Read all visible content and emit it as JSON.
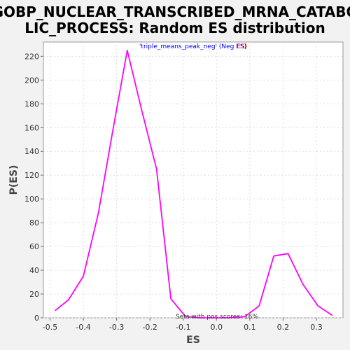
{
  "chart_data": {
    "type": "line",
    "title_lines": [
      "GOBP_NUCLEAR_TRANSCRIBED_MRNA_CATABO",
      "LIC_PROCESS: Random ES distribution"
    ],
    "xlabel": "ES",
    "ylabel": "P(ES)",
    "xlim": [
      -0.52,
      0.38
    ],
    "ylim": [
      0,
      232
    ],
    "xticks": [
      -0.5,
      -0.4,
      -0.3,
      -0.2,
      -0.1,
      0.0,
      0.1,
      0.2,
      0.3
    ],
    "xtick_labels": [
      "-0.5",
      "-0.4",
      "-0.3",
      "-0.2",
      "-0.1",
      "0.0",
      "0.1",
      "0.2",
      "0.3"
    ],
    "yticks": [
      0,
      20,
      40,
      60,
      80,
      100,
      120,
      140,
      160,
      180,
      200,
      220
    ],
    "ytick_labels": [
      "0",
      "20",
      "40",
      "60",
      "80",
      "100",
      "120",
      "140",
      "160",
      "180",
      "200",
      "220"
    ],
    "grid": true,
    "series": [
      {
        "color": "#ff00ff",
        "x": [
          -0.485,
          -0.445,
          -0.4,
          -0.355,
          -0.31,
          -0.268,
          -0.225,
          -0.18,
          -0.137,
          -0.093,
          -0.05,
          -0.005,
          0.04,
          0.085,
          0.128,
          0.172,
          0.215,
          0.26,
          0.305,
          0.348
        ],
        "y": [
          6,
          15,
          35,
          88,
          160,
          225,
          175,
          125,
          16,
          1,
          0,
          0,
          0,
          1,
          10,
          52,
          54,
          28,
          10,
          2
        ]
      }
    ],
    "legend": {
      "text_before": "'triple_means_peak_neg' (Neg ES)",
      "text_red": "ES)",
      "placement": "top-center"
    },
    "annotation": "Sets with pos scores: 16%",
    "colors": {
      "background": "#f2f2f2",
      "plot_bg": "#ffffff",
      "legend_blue": "#0000ff",
      "legend_red": "#ff0000"
    }
  }
}
